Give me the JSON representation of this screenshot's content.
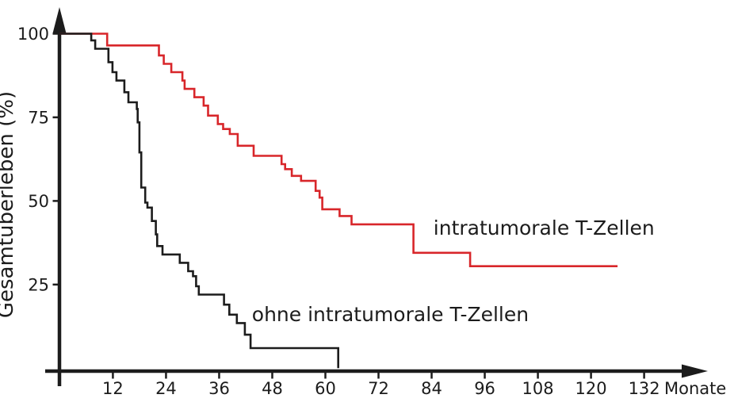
{
  "chart_data": {
    "type": "line",
    "subtype": "kaplan-meier-step-survival",
    "title": "",
    "xlabel": "Monate",
    "ylabel": "Gesamtüberleben (%)",
    "x_ticks": [
      12,
      24,
      36,
      48,
      60,
      72,
      84,
      96,
      108,
      120,
      132
    ],
    "y_ticks": [
      25,
      50,
      75,
      100
    ],
    "xlim": [
      0,
      146
    ],
    "ylim": [
      0,
      100
    ],
    "grid": false,
    "legend_position": "annotations-on-plot",
    "axis_color": "#1c1c1c",
    "series": [
      {
        "name": "intratumorale T-Zellen",
        "color": "#d8262a",
        "steps": [
          [
            0,
            100
          ],
          [
            10.7,
            96.5
          ],
          [
            22.4,
            93.5
          ],
          [
            23.5,
            91
          ],
          [
            25.2,
            88.5
          ],
          [
            27.7,
            86
          ],
          [
            28.2,
            83.5
          ],
          [
            30.4,
            81
          ],
          [
            32.5,
            78.5
          ],
          [
            33.5,
            75.5
          ],
          [
            35.7,
            73
          ],
          [
            36.9,
            71.5
          ],
          [
            38.4,
            70
          ],
          [
            40.2,
            66.5
          ],
          [
            43.8,
            63.5
          ],
          [
            50.1,
            61
          ],
          [
            50.9,
            59.5
          ],
          [
            52.4,
            57.5
          ],
          [
            54.5,
            56
          ],
          [
            57.8,
            53
          ],
          [
            58.7,
            51
          ],
          [
            59.3,
            47.5
          ],
          [
            63.2,
            45.5
          ],
          [
            65.9,
            43
          ],
          [
            79.9,
            34.5
          ],
          [
            92.7,
            30.5
          ],
          [
            126,
            30.5
          ]
        ]
      },
      {
        "name": "ohne intratumorale T-Zellen",
        "color": "#1c1c1c",
        "steps": [
          [
            0,
            100
          ],
          [
            7.1,
            98
          ],
          [
            8,
            95.5
          ],
          [
            11,
            91.5
          ],
          [
            11.9,
            88.5
          ],
          [
            12.8,
            86
          ],
          [
            14.6,
            82.5
          ],
          [
            15.5,
            79.5
          ],
          [
            17.4,
            77.5
          ],
          [
            17.6,
            73.5
          ],
          [
            18,
            64.5
          ],
          [
            18.4,
            54
          ],
          [
            19.3,
            49.5
          ],
          [
            19.8,
            48
          ],
          [
            20.8,
            44
          ],
          [
            21.7,
            40
          ],
          [
            22,
            36.5
          ],
          [
            23.2,
            34
          ],
          [
            27.1,
            31.5
          ],
          [
            29,
            29
          ],
          [
            30.1,
            27.5
          ],
          [
            30.8,
            24.5
          ],
          [
            31.4,
            22
          ],
          [
            37.1,
            19
          ],
          [
            38.3,
            16
          ],
          [
            40,
            13.5
          ],
          [
            41.8,
            10
          ],
          [
            43.1,
            6
          ],
          [
            62.9,
            0
          ]
        ]
      }
    ],
    "annotations": [
      {
        "text": "intratumorale T-Zellen",
        "month": 84.4,
        "percent": 42,
        "color": "#d8262a"
      },
      {
        "text": "ohne intratumorale T-Zellen",
        "month": 43.4,
        "percent": 16.2,
        "color": "#d8262a"
      }
    ]
  }
}
